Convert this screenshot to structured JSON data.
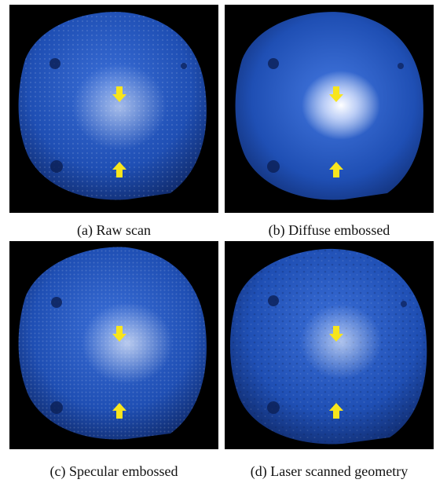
{
  "figure": {
    "panels": [
      {
        "id": "a",
        "caption": "(a) Raw scan",
        "texture": "bumpy",
        "highlight": "medium"
      },
      {
        "id": "b",
        "caption": "(b) Diffuse embossed",
        "texture": "smooth",
        "highlight": "strong"
      },
      {
        "id": "c",
        "caption": "(c) Specular embossed",
        "texture": "fine-bumpy",
        "highlight": "medium"
      },
      {
        "id": "d",
        "caption": "(d) Laser scanned geometry",
        "texture": "rough",
        "highlight": "medium"
      }
    ],
    "colors": {
      "background": "#000000",
      "object": "#1f4fb4",
      "object_dark": "#0b1f55",
      "highlight": "#ffffff",
      "arrow": "#f7e51d"
    },
    "icons": [
      "arrow-down-icon",
      "arrow-up-icon"
    ]
  }
}
